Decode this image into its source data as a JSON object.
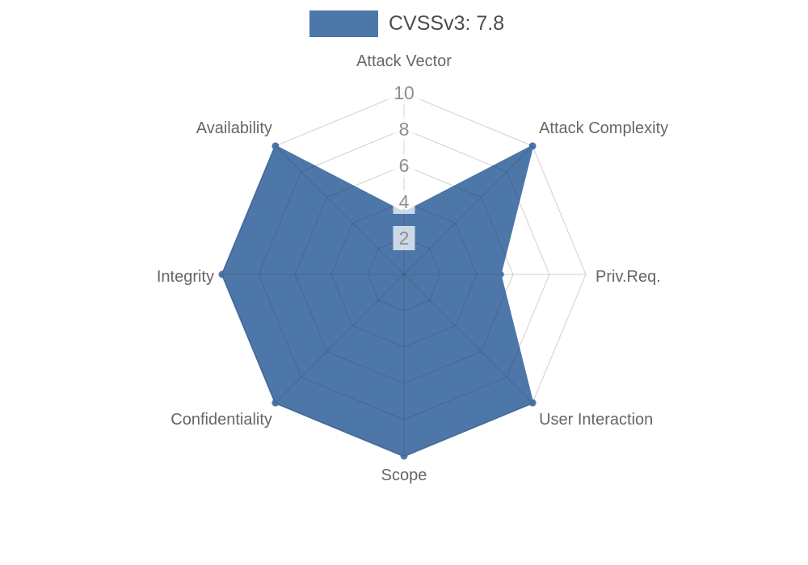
{
  "legend": {
    "label": "CVSSv3: 7.8"
  },
  "colors": {
    "series": "#4e77a9",
    "grid": "rgba(40,45,55,0.22)",
    "axis_label": "#666666",
    "tick_label": "#8e8e8e",
    "tick_box": "rgba(255,255,255,0.72)",
    "legend_text": "#4d4d4d",
    "background": "#ffffff"
  },
  "chart_data": {
    "type": "radar",
    "title": "",
    "categories": [
      "Attack Vector",
      "Attack Complexity",
      "Priv.Req.",
      "User Interaction",
      "Scope",
      "Confidentiality",
      "Integrity",
      "Availability"
    ],
    "series": [
      {
        "name": "CVSSv3: 7.8",
        "values": [
          3.4,
          10,
          5.3,
          10,
          10,
          10,
          10,
          10
        ]
      }
    ],
    "radial_ticks": [
      2,
      4,
      6,
      8,
      10
    ],
    "rlim": [
      0,
      10
    ],
    "grid": true,
    "grid_shape": "polygon",
    "legend_position": "top-center"
  }
}
